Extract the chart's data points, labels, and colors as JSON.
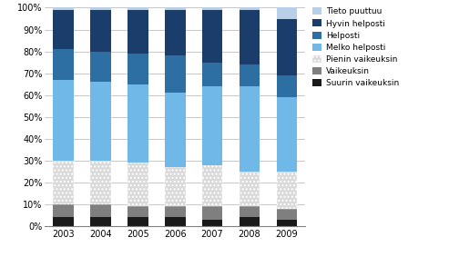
{
  "categories": [
    "2003",
    "2004",
    "2005",
    "2006",
    "2007",
    "2008",
    "2009"
  ],
  "series": {
    "Suurin vaikeuksin": [
      4,
      4,
      4,
      4,
      3,
      4,
      3
    ],
    "Vaikeuksin": [
      6,
      6,
      5,
      5,
      6,
      5,
      5
    ],
    "Pienin vaikeuksin": [
      20,
      20,
      20,
      18,
      19,
      16,
      17
    ],
    "Melko helposti": [
      37,
      36,
      36,
      34,
      36,
      39,
      34
    ],
    "Helposti": [
      14,
      14,
      14,
      17,
      11,
      10,
      10
    ],
    "Hyvin helposti": [
      18,
      19,
      20,
      21,
      24,
      25,
      26
    ],
    "Tieto puuttuu": [
      1,
      1,
      1,
      1,
      1,
      1,
      5
    ]
  },
  "colors": {
    "Suurin vaikeuksin": "#1a1a1a",
    "Vaikeuksin": "#7f7f7f",
    "Pienin vaikeuksin": "#d9d9d9",
    "Melko helposti": "#70b8e8",
    "Helposti": "#2e6fa3",
    "Hyvin helposti": "#1a3d6b",
    "Tieto puuttuu": "#b8cfe8"
  },
  "hatch": {
    "Suurin vaikeuksin": "",
    "Vaikeuksin": "",
    "Pienin vaikeuksin": "....",
    "Melko helposti": "",
    "Helposti": "",
    "Hyvin helposti": "",
    "Tieto puuttuu": ""
  },
  "legend_order": [
    "Tieto puuttuu",
    "Hyvin helposti",
    "Helposti",
    "Melko helposti",
    "Pienin vaikeuksin",
    "Vaikeuksin",
    "Suurin vaikeuksin"
  ],
  "stack_order": [
    "Suurin vaikeuksin",
    "Vaikeuksin",
    "Pienin vaikeuksin",
    "Melko helposti",
    "Helposti",
    "Hyvin helposti",
    "Tieto puuttuu"
  ],
  "ytick_labels": [
    "0%",
    "10%",
    "20%",
    "30%",
    "40%",
    "50%",
    "60%",
    "70%",
    "80%",
    "90%",
    "100%"
  ],
  "figsize": [
    4.93,
    2.83
  ],
  "dpi": 100,
  "bar_width": 0.55
}
